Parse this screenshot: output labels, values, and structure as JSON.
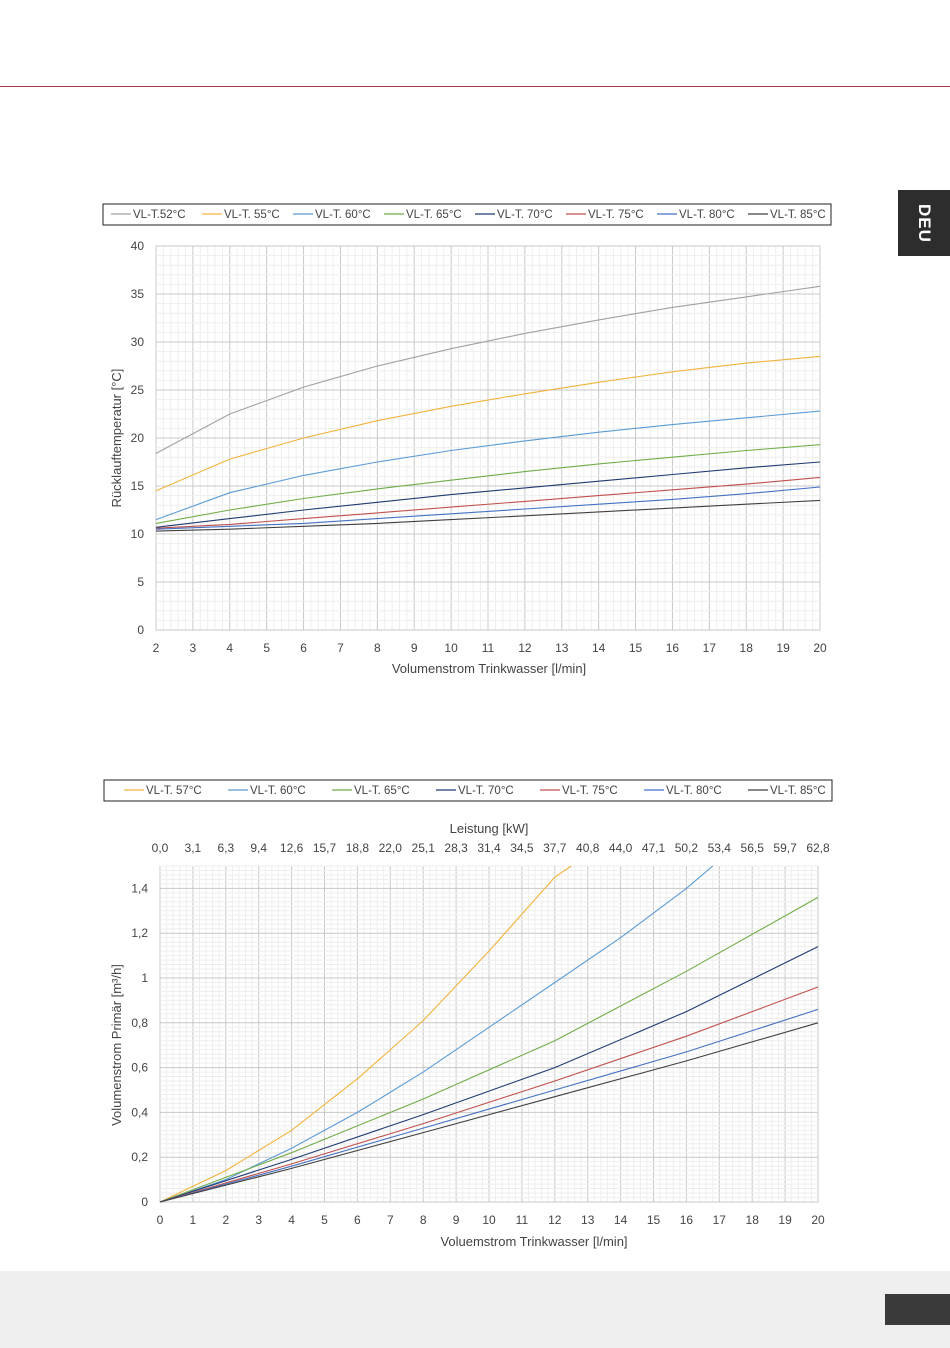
{
  "page": {
    "language_tab": "DEU"
  },
  "colors": {
    "rule": "#a8324a",
    "series": [
      "#a0a0a0",
      "#f2b33d",
      "#5b9bd5",
      "#70ad47",
      "#1f3b73",
      "#c0504d",
      "#4472c4",
      "#404040"
    ]
  },
  "chart_data": [
    {
      "type": "line",
      "xlabel": "Volumenstrom Trinkwasser [l/min]",
      "ylabel": "Rücklauftemperatur [°C]",
      "xlim": [
        2,
        20
      ],
      "ylim": [
        0,
        40
      ],
      "xticks": [
        "2",
        "3",
        "4",
        "5",
        "6",
        "7",
        "8",
        "9",
        "10",
        "11",
        "12",
        "13",
        "14",
        "15",
        "16",
        "17",
        "18",
        "19",
        "20"
      ],
      "yticks": [
        "0",
        "5",
        "10",
        "15",
        "20",
        "25",
        "30",
        "35",
        "40"
      ],
      "grid": true,
      "legend_position": "top",
      "x": [
        2,
        4,
        6,
        8,
        10,
        12,
        14,
        16,
        18,
        20
      ],
      "series": [
        {
          "name": "VL-T.52°C",
          "values": [
            18.4,
            22.5,
            25.3,
            27.5,
            29.3,
            30.9,
            32.3,
            33.6,
            34.7,
            35.8
          ]
        },
        {
          "name": "VL-T. 55°C",
          "values": [
            14.5,
            17.8,
            20.0,
            21.8,
            23.3,
            24.6,
            25.8,
            26.9,
            27.8,
            28.5
          ]
        },
        {
          "name": "VL-T. 60°C",
          "values": [
            11.5,
            14.3,
            16.1,
            17.5,
            18.7,
            19.7,
            20.6,
            21.4,
            22.1,
            22.8
          ]
        },
        {
          "name": "VL-T. 65°C",
          "values": [
            11.1,
            12.5,
            13.7,
            14.7,
            15.6,
            16.5,
            17.3,
            18.0,
            18.7,
            19.3
          ]
        },
        {
          "name": "VL-T. 70°C",
          "values": [
            10.7,
            11.6,
            12.5,
            13.3,
            14.1,
            14.8,
            15.5,
            16.2,
            16.9,
            17.5
          ]
        },
        {
          "name": "VL-T. 75°C",
          "values": [
            10.6,
            11.0,
            11.6,
            12.2,
            12.8,
            13.4,
            14.0,
            14.6,
            15.2,
            15.9
          ]
        },
        {
          "name": "VL-T. 80°C",
          "values": [
            10.5,
            10.8,
            11.1,
            11.6,
            12.1,
            12.6,
            13.1,
            13.6,
            14.2,
            14.9
          ]
        },
        {
          "name": "VL-T. 85°C",
          "values": [
            10.3,
            10.5,
            10.8,
            11.1,
            11.5,
            11.9,
            12.3,
            12.7,
            13.1,
            13.5
          ]
        }
      ]
    },
    {
      "type": "line",
      "xlabel": "Voluemstrom Trinkwasser [l/min]",
      "ylabel": "Volumenstrom Primär [m³/h]",
      "x2label": "Leistung [kW]",
      "xlim": [
        0,
        20
      ],
      "ylim": [
        0,
        1.5
      ],
      "xticks": [
        "0",
        "1",
        "2",
        "3",
        "4",
        "5",
        "6",
        "7",
        "8",
        "9",
        "10",
        "11",
        "12",
        "13",
        "14",
        "15",
        "16",
        "17",
        "18",
        "19",
        "20"
      ],
      "x2ticks": [
        "0,0",
        "3,1",
        "6,3",
        "9,4",
        "12,6",
        "15,7",
        "18,8",
        "22,0",
        "25,1",
        "28,3",
        "31,4",
        "34,5",
        "37,7",
        "40,8",
        "44,0",
        "47,1",
        "50,2",
        "53,4",
        "56,5",
        "59,7",
        "62,8"
      ],
      "yticks": [
        "0",
        "0,2",
        "0,4",
        "0,6",
        "0,8",
        "1",
        "1,2",
        "1,4"
      ],
      "grid": true,
      "legend_position": "top",
      "series": [
        {
          "name": "VL-T. 57°C",
          "x": [
            0,
            2,
            4,
            6,
            8,
            10,
            12,
            12.5
          ],
          "values": [
            0,
            0.14,
            0.32,
            0.55,
            0.81,
            1.12,
            1.45,
            1.5
          ]
        },
        {
          "name": "VL-T. 60°C",
          "x": [
            0,
            2,
            4,
            6,
            8,
            10,
            12,
            14,
            16,
            16.8
          ],
          "values": [
            0,
            0.1,
            0.24,
            0.4,
            0.58,
            0.78,
            0.98,
            1.18,
            1.4,
            1.5
          ]
        },
        {
          "name": "VL-T. 65°C",
          "x": [
            0,
            4,
            8,
            12,
            16,
            20
          ],
          "values": [
            0,
            0.22,
            0.46,
            0.72,
            1.03,
            1.36
          ]
        },
        {
          "name": "VL-T. 70°C",
          "x": [
            0,
            4,
            8,
            12,
            16,
            20
          ],
          "values": [
            0,
            0.19,
            0.39,
            0.6,
            0.85,
            1.14
          ]
        },
        {
          "name": "VL-T. 75°C",
          "x": [
            0,
            4,
            8,
            12,
            16,
            20
          ],
          "values": [
            0,
            0.17,
            0.35,
            0.54,
            0.74,
            0.96
          ]
        },
        {
          "name": "VL-T. 80°C",
          "x": [
            0,
            4,
            8,
            12,
            16,
            20
          ],
          "values": [
            0,
            0.16,
            0.33,
            0.5,
            0.67,
            0.86
          ]
        },
        {
          "name": "VL-T. 85°C",
          "x": [
            0,
            4,
            8,
            12,
            16,
            20
          ],
          "values": [
            0,
            0.15,
            0.31,
            0.47,
            0.63,
            0.8
          ]
        }
      ]
    }
  ]
}
